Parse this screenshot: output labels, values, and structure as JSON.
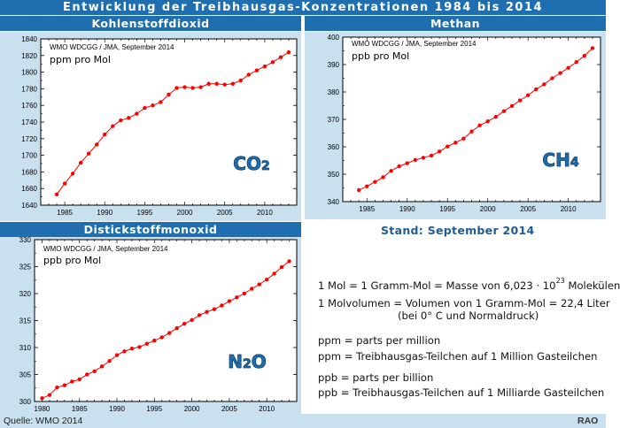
{
  "title": "Entwicklung der Treibhausgas-Konzentrationen 1984 bis 2014",
  "stand": "Stand: September 2014",
  "source": "Quelle: WMO 2014",
  "logo": "RAO",
  "colors": {
    "header": "#1f6fb0",
    "panel": "#c9e0ef",
    "line": "#ff0000",
    "formula": "#1f6fb0"
  },
  "info": {
    "mol_prefix": "1 Mol = 1 Gramm-Mol = Masse von 6,023 · 10",
    "mol_exp": "23",
    "mol_suffix": "Molekülen",
    "molvol_line1": "1 Molvolumen = Volumen von 1 Gramm-Mol = 22,4 Liter",
    "molvol_line2": "(bei 0° C und Normaldruck)",
    "ppm": "ppm = parts per million",
    "ppm_def": "ppm = Treibhausgas-Teilchen auf 1 Million Gasteilchen",
    "ppb": "ppb = parts per billion",
    "ppb_def": "ppb = Treibhausgas-Teilchen auf 1 Milliarde Gasteilchen"
  },
  "chart_data": [
    {
      "type": "line",
      "heading": "Kohlenstoffdioxid",
      "credit": "WMO WDCGG / JMA, September 2014",
      "unit": "ppm pro Mol",
      "formula": "CO2",
      "xlim": [
        1982,
        2014
      ],
      "ylim": [
        1640,
        1840
      ],
      "xticks": [
        1985,
        1990,
        1995,
        2000,
        2005,
        2010
      ],
      "yticks": [
        1640,
        1660,
        1680,
        1700,
        1720,
        1740,
        1760,
        1780,
        1800,
        1820,
        1840
      ],
      "x": [
        1984,
        1985,
        1986,
        1987,
        1988,
        1989,
        1990,
        1991,
        1992,
        1993,
        1994,
        1995,
        1996,
        1997,
        1998,
        1999,
        2000,
        2001,
        2002,
        2003,
        2004,
        2005,
        2006,
        2007,
        2008,
        2009,
        2010,
        2011,
        2012,
        2013
      ],
      "y": [
        1653,
        1666,
        1678,
        1691,
        1702,
        1713,
        1725,
        1735,
        1742,
        1745,
        1750,
        1757,
        1760,
        1764,
        1773,
        1781,
        1782,
        1781,
        1782,
        1786,
        1786,
        1785,
        1786,
        1790,
        1797,
        1802,
        1807,
        1812,
        1818,
        1824
      ]
    },
    {
      "type": "line",
      "heading": "Methan",
      "credit": "WMO WDCGG / JMA, September 2014",
      "unit": "ppb pro Mol",
      "formula": "CH4",
      "xlim": [
        1982,
        2014
      ],
      "ylim": [
        340,
        400
      ],
      "xticks": [
        1985,
        1990,
        1995,
        2000,
        2005,
        2010
      ],
      "yticks": [
        340,
        350,
        360,
        370,
        380,
        390,
        400
      ],
      "x": [
        1984,
        1985,
        1986,
        1987,
        1988,
        1989,
        1990,
        1991,
        1992,
        1993,
        1994,
        1995,
        1996,
        1997,
        1998,
        1999,
        2000,
        2001,
        2002,
        2003,
        2004,
        2005,
        2006,
        2007,
        2008,
        2009,
        2010,
        2011,
        2012,
        2013
      ],
      "y": [
        344.2,
        345.6,
        347.2,
        348.9,
        351.2,
        352.9,
        354.0,
        355.2,
        356.0,
        356.8,
        358.3,
        360.1,
        361.5,
        363.0,
        365.6,
        367.8,
        369.3,
        370.9,
        373.0,
        374.9,
        376.9,
        378.8,
        381.0,
        382.8,
        385.0,
        386.9,
        388.8,
        390.9,
        393.2,
        396.0
      ]
    },
    {
      "type": "line",
      "heading": "Distickstoffmonoxid",
      "credit": "WMO WDCGG / JMA, September 2014",
      "unit": "ppb pro Mol",
      "formula": "N2O",
      "xlim": [
        1979,
        2014
      ],
      "ylim": [
        300,
        330
      ],
      "xticks": [
        1980,
        1985,
        1990,
        1995,
        2000,
        2005,
        2010
      ],
      "yticks": [
        300,
        305,
        310,
        315,
        320,
        325,
        330
      ],
      "x": [
        1980,
        1981,
        1982,
        1983,
        1984,
        1985,
        1986,
        1987,
        1988,
        1989,
        1990,
        1991,
        1992,
        1993,
        1994,
        1995,
        1996,
        1997,
        1998,
        1999,
        2000,
        2001,
        2002,
        2003,
        2004,
        2005,
        2006,
        2007,
        2008,
        2009,
        2010,
        2011,
        2012,
        2013
      ],
      "y": [
        300.6,
        301.2,
        302.6,
        303.0,
        303.7,
        304.1,
        305.0,
        305.6,
        306.5,
        307.5,
        308.6,
        309.3,
        309.8,
        310.1,
        310.7,
        311.3,
        311.9,
        312.7,
        313.6,
        314.4,
        315.1,
        316.0,
        316.6,
        317.1,
        317.8,
        318.6,
        319.3,
        320.0,
        320.9,
        321.7,
        322.6,
        323.7,
        324.9,
        326.0
      ]
    }
  ]
}
